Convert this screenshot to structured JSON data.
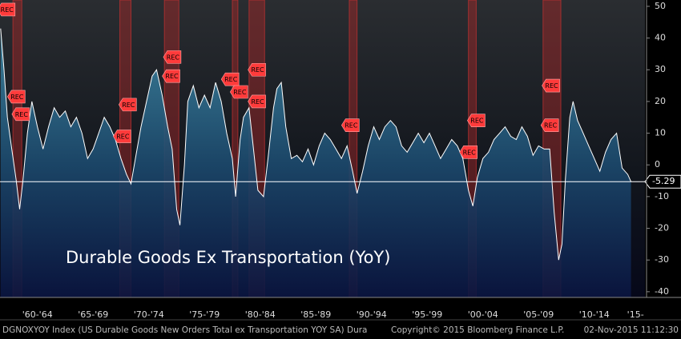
{
  "chart_data": {
    "type": "area",
    "annotation": "Durable Goods Ex Transportation (YoY)",
    "xlim": [
      1959.14,
      2017.05
    ],
    "ylim": [
      -41.8,
      52
    ],
    "yticks": [
      50,
      40,
      30,
      20,
      10,
      0,
      -10,
      -20,
      -30,
      -40
    ],
    "xticks": [
      {
        "value": 1962.5,
        "label": "'60-'64"
      },
      {
        "value": 1967.5,
        "label": "'65-'69"
      },
      {
        "value": 1972.5,
        "label": "'70-'74"
      },
      {
        "value": 1977.5,
        "label": "'75-'79"
      },
      {
        "value": 1982.5,
        "label": "'80-'84"
      },
      {
        "value": 1987.5,
        "label": "'85-'89"
      },
      {
        "value": 1992.5,
        "label": "'90-'94"
      },
      {
        "value": 1997.5,
        "label": "'95-'99"
      },
      {
        "value": 2002.5,
        "label": "'00-'04"
      },
      {
        "value": 2007.5,
        "label": "'05-'09"
      },
      {
        "value": 2012.5,
        "label": "'10-'14"
      },
      {
        "value": 2016.2,
        "label": "'15-"
      }
    ],
    "series": [
      {
        "name": "DGNOXYOY",
        "color": "#ffffff",
        "x": [
          1959.2,
          1959.5,
          1959.8,
          1960.2,
          1960.6,
          1960.9,
          1961.2,
          1961.6,
          1962.0,
          1962.5,
          1963.0,
          1963.5,
          1964.0,
          1964.5,
          1965.0,
          1965.5,
          1966.0,
          1966.5,
          1967.0,
          1967.5,
          1968.0,
          1968.5,
          1969.0,
          1969.5,
          1970.0,
          1970.5,
          1970.9,
          1971.3,
          1971.8,
          1972.3,
          1972.8,
          1973.2,
          1973.7,
          1974.2,
          1974.6,
          1975.0,
          1975.3,
          1975.7,
          1976.0,
          1976.5,
          1977.0,
          1977.5,
          1978.0,
          1978.5,
          1979.0,
          1979.5,
          1980.0,
          1980.3,
          1980.7,
          1981.0,
          1981.5,
          1981.9,
          1982.3,
          1982.8,
          1983.2,
          1983.7,
          1984.0,
          1984.4,
          1984.8,
          1985.3,
          1985.8,
          1986.3,
          1986.8,
          1987.3,
          1987.8,
          1988.3,
          1988.8,
          1989.3,
          1989.8,
          1990.3,
          1990.8,
          1991.2,
          1991.7,
          1992.2,
          1992.7,
          1993.2,
          1993.7,
          1994.2,
          1994.7,
          1995.2,
          1995.7,
          1996.2,
          1996.7,
          1997.2,
          1997.7,
          1998.2,
          1998.7,
          1999.2,
          1999.7,
          2000.2,
          2000.7,
          2001.2,
          2001.6,
          2002.0,
          2002.5,
          2003.0,
          2003.5,
          2004.0,
          2004.5,
          2005.0,
          2005.5,
          2006.0,
          2006.5,
          2007.0,
          2007.5,
          2008.0,
          2008.5,
          2008.9,
          2009.3,
          2009.6,
          2009.9,
          2010.3,
          2010.6,
          2011.0,
          2011.5,
          2012.0,
          2012.5,
          2013.0,
          2013.5,
          2014.0,
          2014.5,
          2015.0,
          2015.5,
          2015.8
        ],
        "values": [
          43,
          30,
          15,
          5,
          -5,
          -14,
          -5,
          10,
          20,
          12,
          5,
          12,
          18,
          15,
          17,
          12,
          15,
          10,
          2,
          5,
          10,
          15,
          12,
          8,
          2,
          -3,
          -6,
          2,
          12,
          20,
          28,
          30,
          22,
          12,
          5,
          -14,
          -19,
          0,
          20,
          25,
          18,
          22,
          18,
          26,
          20,
          10,
          2,
          -10,
          8,
          15,
          18,
          5,
          -8,
          -10,
          2,
          18,
          24,
          26,
          12,
          2,
          3,
          1,
          5,
          0,
          6,
          10,
          8,
          5,
          2,
          6,
          -2,
          -9,
          -2,
          6,
          12,
          8,
          12,
          14,
          12,
          6,
          4,
          7,
          10,
          7,
          10,
          6,
          2,
          5,
          8,
          6,
          2,
          -8,
          -13,
          -4,
          2,
          4,
          8,
          10,
          12,
          9,
          8,
          12,
          9,
          3,
          6,
          5,
          5,
          -15,
          -30,
          -25,
          -5,
          15,
          20,
          14,
          10,
          6,
          2,
          -2,
          4,
          8,
          10,
          -1,
          -3,
          -5.29
        ]
      }
    ],
    "recessions": [
      {
        "start": 1960.3,
        "end": 1961.1
      },
      {
        "start": 1969.9,
        "end": 1970.9
      },
      {
        "start": 1973.9,
        "end": 1975.2
      },
      {
        "start": 1980.0,
        "end": 1980.5
      },
      {
        "start": 1981.5,
        "end": 1982.9
      },
      {
        "start": 1990.5,
        "end": 1991.2
      },
      {
        "start": 2001.2,
        "end": 2001.9
      },
      {
        "start": 2007.9,
        "end": 2009.5
      }
    ],
    "flags": [
      {
        "x": 1959.7,
        "y": 49,
        "label": "REC"
      },
      {
        "x": 1960.6,
        "y": 21.5,
        "label": "REC"
      },
      {
        "x": 1961.0,
        "y": 16,
        "label": "REC"
      },
      {
        "x": 1970.6,
        "y": 19,
        "label": "REC"
      },
      {
        "x": 1970.1,
        "y": 9,
        "label": "REC"
      },
      {
        "x": 1974.6,
        "y": 34,
        "label": "REC"
      },
      {
        "x": 1974.5,
        "y": 28,
        "label": "REC"
      },
      {
        "x": 1979.8,
        "y": 27,
        "label": "REC"
      },
      {
        "x": 1980.6,
        "y": 23,
        "label": "REC"
      },
      {
        "x": 1982.2,
        "y": 30,
        "label": "REC"
      },
      {
        "x": 1982.2,
        "y": 20,
        "label": "REC"
      },
      {
        "x": 1990.6,
        "y": 12.5,
        "label": "REC"
      },
      {
        "x": 2001.9,
        "y": 14,
        "label": "REC"
      },
      {
        "x": 2001.2,
        "y": 4,
        "label": "REC"
      },
      {
        "x": 2008.6,
        "y": 25,
        "label": "REC"
      },
      {
        "x": 2008.5,
        "y": 12.5,
        "label": "REC"
      }
    ]
  },
  "footer": {
    "left": "DGNOXYOY Index (US Durable Goods New Orders Total ex Transportation YOY SA) Dura",
    "center": "Copyright© 2015 Bloomberg Finance L.P.",
    "right": "02-Nov-2015 11:12:30"
  }
}
